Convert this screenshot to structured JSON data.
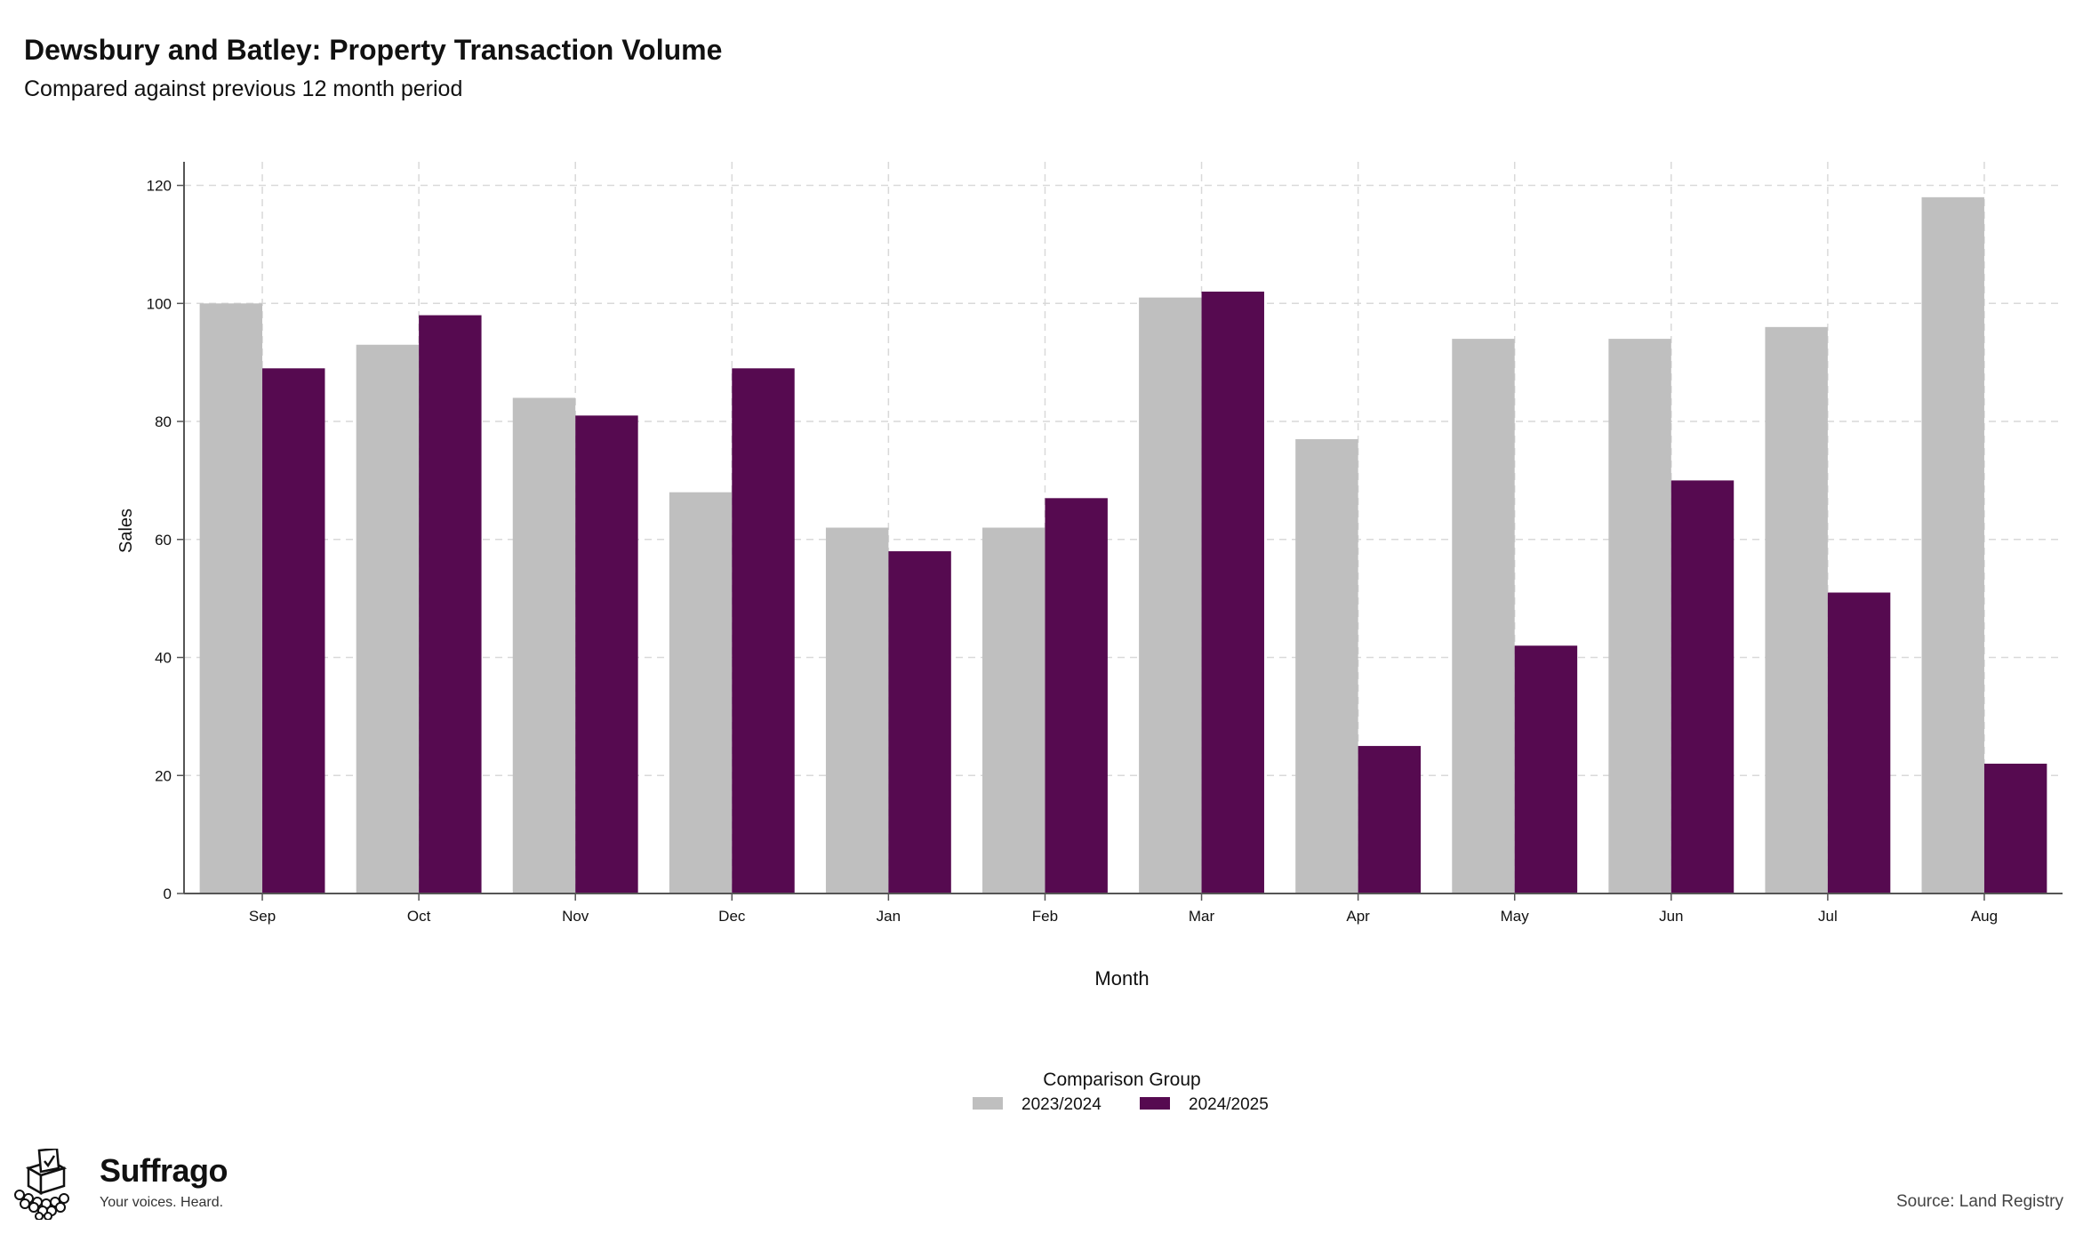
{
  "header": {
    "title": "Dewsbury and Batley: Property Transaction Volume",
    "subtitle": "Compared against previous 12 month period"
  },
  "chart_data": {
    "type": "bar",
    "title": "Dewsbury and Batley: Property Transaction Volume",
    "subtitle": "Compared against previous 12 month period",
    "xlabel": "Month",
    "ylabel": "Sales",
    "ylim": [
      0,
      124
    ],
    "yticks": [
      0,
      20,
      40,
      60,
      80,
      100,
      120
    ],
    "grid": true,
    "categories": [
      "Sep",
      "Oct",
      "Nov",
      "Dec",
      "Jan",
      "Feb",
      "Mar",
      "Apr",
      "May",
      "Jun",
      "Jul",
      "Aug"
    ],
    "series": [
      {
        "name": "2023/2024",
        "color": "#bfbfbf",
        "values": [
          100,
          93,
          84,
          68,
          62,
          62,
          101,
          77,
          94,
          94,
          96,
          118
        ]
      },
      {
        "name": "2024/2025",
        "color": "#560a50",
        "values": [
          89,
          98,
          81,
          89,
          58,
          67,
          102,
          25,
          42,
          70,
          51,
          22
        ]
      }
    ],
    "legend": {
      "title": "Comparison Group",
      "position": "bottom"
    }
  },
  "brand": {
    "name": "Suffrago",
    "tagline": "Your voices. Heard.",
    "icon": "ballot-box-logo-icon"
  },
  "footer": {
    "source": "Source: Land Registry"
  }
}
